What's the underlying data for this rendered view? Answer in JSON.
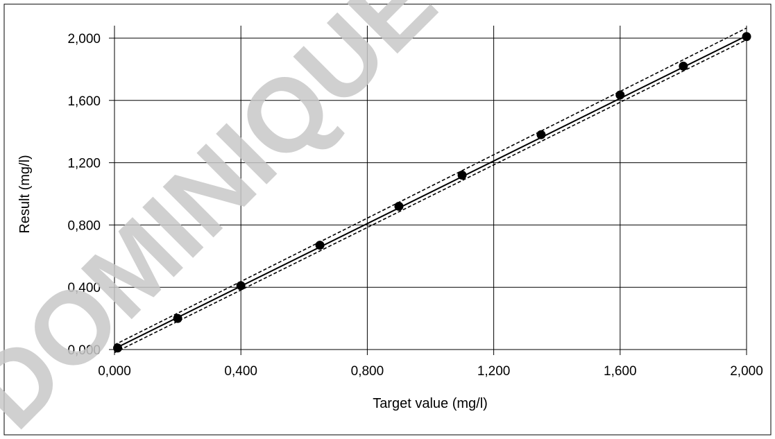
{
  "chart_data": {
    "type": "scatter",
    "xlabel": "Target value (mg/l)",
    "ylabel": "Result (mg/l)",
    "xlim": [
      0,
      2
    ],
    "ylim": [
      0,
      2
    ],
    "xticks": [
      0,
      0.4,
      0.8,
      1.2,
      1.6,
      2.0
    ],
    "yticks": [
      0,
      0.4,
      0.8,
      1.2,
      1.6,
      2.0
    ],
    "xtick_labels": [
      "0,000",
      "0,400",
      "0,800",
      "1,200",
      "1,600",
      "2,000"
    ],
    "ytick_labels": [
      "0,000",
      "0,400",
      "0,800",
      "1,200",
      "1,600",
      "2,000"
    ],
    "grid": true,
    "legend": "none",
    "points": {
      "x": [
        0.01,
        0.2,
        0.4,
        0.65,
        0.9,
        1.1,
        1.35,
        1.6,
        1.8,
        2.0
      ],
      "y": [
        0.01,
        0.2,
        0.41,
        0.67,
        0.92,
        1.12,
        1.38,
        1.635,
        1.82,
        2.01
      ]
    },
    "fit_line": {
      "x": [
        0,
        2.0
      ],
      "y": [
        0.005,
        2.015
      ]
    },
    "upper_bound": {
      "x": [
        0,
        2.0
      ],
      "y": [
        0.03,
        2.065
      ]
    },
    "lower_bound": {
      "x": [
        0,
        2.0
      ],
      "y": [
        -0.02,
        1.99
      ]
    }
  },
  "watermark": {
    "text": "DOMINIQUE"
  },
  "colors": {
    "axis": "#000000",
    "grid": "#000000",
    "marker": "#000000",
    "watermark": "#c8c8c8"
  }
}
